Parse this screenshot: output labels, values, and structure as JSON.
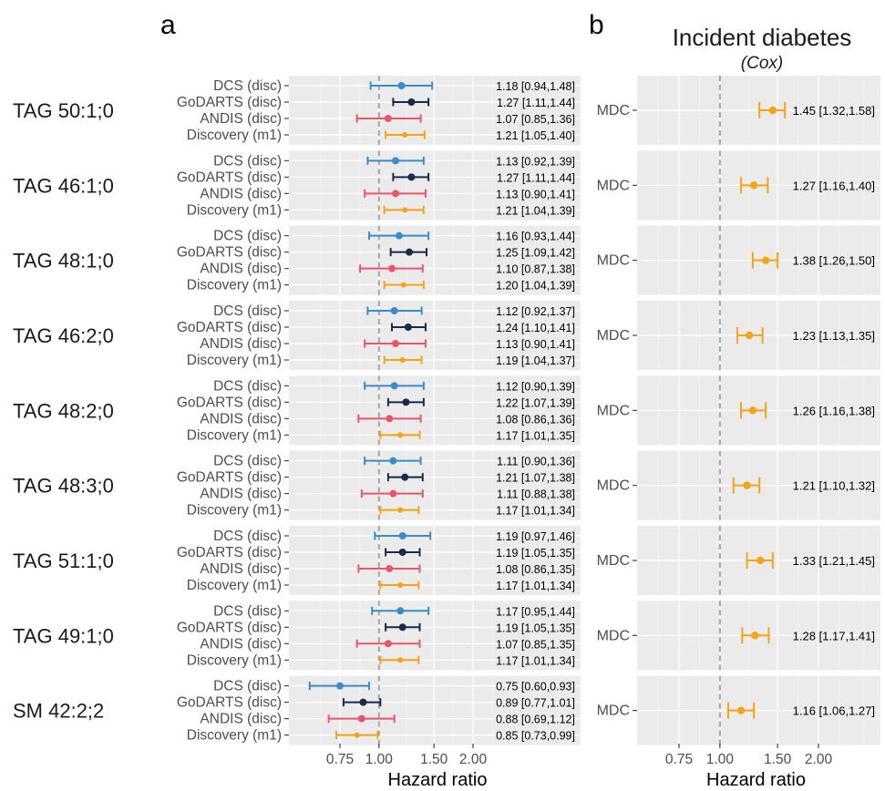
{
  "panels": {
    "a": {
      "letter": "a",
      "title": "",
      "subtitle": "",
      "xlabel": "Hazard ratio"
    },
    "b": {
      "letter": "b",
      "title": "Incident diabetes",
      "subtitle": "(Cox)",
      "xlabel": "Hazard ratio"
    }
  },
  "chart_data": [
    {
      "type": "forest",
      "panel": "a",
      "x_scale": "log",
      "xlim": [
        0.5,
        3.0
      ],
      "x_ticks": [
        0.75,
        1.0,
        1.5,
        2.0
      ],
      "x_tick_labels": [
        "0.75",
        "1.00",
        "1.50",
        "2.00"
      ],
      "reference_line": 1.0,
      "xlabel": "Hazard ratio",
      "series_colors": {
        "DCS (disc)": "#3A8DC6",
        "GoDARTS (disc)": "#1B2A4A",
        "ANDIS (disc)": "#E8566C",
        "Discovery (m1)": "#F2A516"
      },
      "groups": [
        {
          "label": "TAG 50:1;0",
          "rows": [
            {
              "name": "DCS (disc)",
              "est": 1.18,
              "lo": 0.94,
              "hi": 1.48,
              "text": "1.18 [0.94,1.48]"
            },
            {
              "name": "GoDARTS (disc)",
              "est": 1.27,
              "lo": 1.11,
              "hi": 1.44,
              "text": "1.27 [1.11,1.44]"
            },
            {
              "name": "ANDIS (disc)",
              "est": 1.07,
              "lo": 0.85,
              "hi": 1.36,
              "text": "1.07 [0.85,1.36]"
            },
            {
              "name": "Discovery (m1)",
              "est": 1.21,
              "lo": 1.05,
              "hi": 1.4,
              "text": "1.21 [1.05,1.40]"
            }
          ]
        },
        {
          "label": "TAG 46:1;0",
          "rows": [
            {
              "name": "DCS (disc)",
              "est": 1.13,
              "lo": 0.92,
              "hi": 1.39,
              "text": "1.13 [0.92,1.39]"
            },
            {
              "name": "GoDARTS (disc)",
              "est": 1.27,
              "lo": 1.11,
              "hi": 1.44,
              "text": "1.27 [1.11,1.44]"
            },
            {
              "name": "ANDIS (disc)",
              "est": 1.13,
              "lo": 0.9,
              "hi": 1.41,
              "text": "1.13 [0.90,1.41]"
            },
            {
              "name": "Discovery (m1)",
              "est": 1.21,
              "lo": 1.04,
              "hi": 1.39,
              "text": "1.21 [1.04,1.39]"
            }
          ]
        },
        {
          "label": "TAG 48:1;0",
          "rows": [
            {
              "name": "DCS (disc)",
              "est": 1.16,
              "lo": 0.93,
              "hi": 1.44,
              "text": "1.16 [0.93,1.44]"
            },
            {
              "name": "GoDARTS (disc)",
              "est": 1.25,
              "lo": 1.09,
              "hi": 1.42,
              "text": "1.25 [1.09,1.42]"
            },
            {
              "name": "ANDIS (disc)",
              "est": 1.1,
              "lo": 0.87,
              "hi": 1.38,
              "text": "1.10 [0.87,1.38]"
            },
            {
              "name": "Discovery (m1)",
              "est": 1.2,
              "lo": 1.04,
              "hi": 1.39,
              "text": "1.20 [1.04,1.39]"
            }
          ]
        },
        {
          "label": "TAG 46:2;0",
          "rows": [
            {
              "name": "DCS (disc)",
              "est": 1.12,
              "lo": 0.92,
              "hi": 1.37,
              "text": "1.12 [0.92,1.37]"
            },
            {
              "name": "GoDARTS (disc)",
              "est": 1.24,
              "lo": 1.1,
              "hi": 1.41,
              "text": "1.24 [1.10,1.41]"
            },
            {
              "name": "ANDIS (disc)",
              "est": 1.13,
              "lo": 0.9,
              "hi": 1.41,
              "text": "1.13 [0.90,1.41]"
            },
            {
              "name": "Discovery (m1)",
              "est": 1.19,
              "lo": 1.04,
              "hi": 1.37,
              "text": "1.19 [1.04,1.37]"
            }
          ]
        },
        {
          "label": "TAG 48:2;0",
          "rows": [
            {
              "name": "DCS (disc)",
              "est": 1.12,
              "lo": 0.9,
              "hi": 1.39,
              "text": "1.12 [0.90,1.39]"
            },
            {
              "name": "GoDARTS (disc)",
              "est": 1.22,
              "lo": 1.07,
              "hi": 1.39,
              "text": "1.22 [1.07,1.39]"
            },
            {
              "name": "ANDIS (disc)",
              "est": 1.08,
              "lo": 0.86,
              "hi": 1.36,
              "text": "1.08 [0.86,1.36]"
            },
            {
              "name": "Discovery (m1)",
              "est": 1.17,
              "lo": 1.01,
              "hi": 1.35,
              "text": "1.17 [1.01,1.35]"
            }
          ]
        },
        {
          "label": "TAG 48:3;0",
          "rows": [
            {
              "name": "DCS (disc)",
              "est": 1.11,
              "lo": 0.9,
              "hi": 1.36,
              "text": "1.11 [0.90,1.36]"
            },
            {
              "name": "GoDARTS (disc)",
              "est": 1.21,
              "lo": 1.07,
              "hi": 1.38,
              "text": "1.21 [1.07,1.38]"
            },
            {
              "name": "ANDIS (disc)",
              "est": 1.11,
              "lo": 0.88,
              "hi": 1.38,
              "text": "1.11 [0.88,1.38]"
            },
            {
              "name": "Discovery (m1)",
              "est": 1.17,
              "lo": 1.01,
              "hi": 1.34,
              "text": "1.17 [1.01,1.34]"
            }
          ]
        },
        {
          "label": "TAG 51:1;0",
          "rows": [
            {
              "name": "DCS (disc)",
              "est": 1.19,
              "lo": 0.97,
              "hi": 1.46,
              "text": "1.19 [0.97,1.46]"
            },
            {
              "name": "GoDARTS (disc)",
              "est": 1.19,
              "lo": 1.05,
              "hi": 1.35,
              "text": "1.19 [1.05,1.35]"
            },
            {
              "name": "ANDIS (disc)",
              "est": 1.08,
              "lo": 0.86,
              "hi": 1.35,
              "text": "1.08 [0.86,1.35]"
            },
            {
              "name": "Discovery (m1)",
              "est": 1.17,
              "lo": 1.01,
              "hi": 1.34,
              "text": "1.17 [1.01,1.34]"
            }
          ]
        },
        {
          "label": "TAG 49:1;0",
          "rows": [
            {
              "name": "DCS (disc)",
              "est": 1.17,
              "lo": 0.95,
              "hi": 1.44,
              "text": "1.17 [0.95,1.44]"
            },
            {
              "name": "GoDARTS (disc)",
              "est": 1.19,
              "lo": 1.05,
              "hi": 1.35,
              "text": "1.19 [1.05,1.35]"
            },
            {
              "name": "ANDIS (disc)",
              "est": 1.07,
              "lo": 0.85,
              "hi": 1.35,
              "text": "1.07 [0.85,1.35]"
            },
            {
              "name": "Discovery (m1)",
              "est": 1.17,
              "lo": 1.01,
              "hi": 1.34,
              "text": "1.17 [1.01,1.34]"
            }
          ]
        },
        {
          "label": "SM 42:2;2",
          "rows": [
            {
              "name": "DCS (disc)",
              "est": 0.75,
              "lo": 0.6,
              "hi": 0.93,
              "text": "0.75 [0.60,0.93]"
            },
            {
              "name": "GoDARTS (disc)",
              "est": 0.89,
              "lo": 0.77,
              "hi": 1.01,
              "text": "0.89 [0.77,1.01]"
            },
            {
              "name": "ANDIS (disc)",
              "est": 0.88,
              "lo": 0.69,
              "hi": 1.12,
              "text": "0.88 [0.69,1.12]"
            },
            {
              "name": "Discovery (m1)",
              "est": 0.85,
              "lo": 0.73,
              "hi": 0.99,
              "text": "0.85 [0.73,0.99]"
            }
          ]
        }
      ]
    },
    {
      "type": "forest",
      "panel": "b",
      "title": "Incident diabetes",
      "subtitle": "(Cox)",
      "x_scale": "log",
      "xlim": [
        0.5,
        3.0
      ],
      "x_ticks": [
        0.75,
        1.0,
        1.5,
        2.0
      ],
      "x_tick_labels": [
        "0.75",
        "1.00",
        "1.50",
        "2.00"
      ],
      "reference_line": 1.0,
      "xlabel": "Hazard ratio",
      "series_colors": {
        "MDC": "#F2A516"
      },
      "groups": [
        {
          "label": "TAG 50:1;0",
          "rows": [
            {
              "name": "MDC",
              "est": 1.45,
              "lo": 1.32,
              "hi": 1.58,
              "text": "1.45 [1.32,1.58]"
            }
          ]
        },
        {
          "label": "TAG 46:1;0",
          "rows": [
            {
              "name": "MDC",
              "est": 1.27,
              "lo": 1.16,
              "hi": 1.4,
              "text": "1.27 [1.16,1.40]"
            }
          ]
        },
        {
          "label": "TAG 48:1;0",
          "rows": [
            {
              "name": "MDC",
              "est": 1.38,
              "lo": 1.26,
              "hi": 1.5,
              "text": "1.38 [1.26,1.50]"
            }
          ]
        },
        {
          "label": "TAG 46:2;0",
          "rows": [
            {
              "name": "MDC",
              "est": 1.23,
              "lo": 1.13,
              "hi": 1.35,
              "text": "1.23 [1.13,1.35]"
            }
          ]
        },
        {
          "label": "TAG 48:2;0",
          "rows": [
            {
              "name": "MDC",
              "est": 1.26,
              "lo": 1.16,
              "hi": 1.38,
              "text": "1.26 [1.16,1.38]"
            }
          ]
        },
        {
          "label": "TAG 48:3;0",
          "rows": [
            {
              "name": "MDC",
              "est": 1.21,
              "lo": 1.1,
              "hi": 1.32,
              "text": "1.21 [1.10,1.32]"
            }
          ]
        },
        {
          "label": "TAG 51:1;0",
          "rows": [
            {
              "name": "MDC",
              "est": 1.33,
              "lo": 1.21,
              "hi": 1.45,
              "text": "1.33 [1.21,1.45]"
            }
          ]
        },
        {
          "label": "TAG 49:1;0",
          "rows": [
            {
              "name": "MDC",
              "est": 1.28,
              "lo": 1.17,
              "hi": 1.41,
              "text": "1.28 [1.17,1.41]"
            }
          ]
        },
        {
          "label": "SM 42:2;2",
          "rows": [
            {
              "name": "MDC",
              "est": 1.16,
              "lo": 1.06,
              "hi": 1.27,
              "text": "1.16 [1.06,1.27]"
            }
          ]
        }
      ]
    }
  ]
}
